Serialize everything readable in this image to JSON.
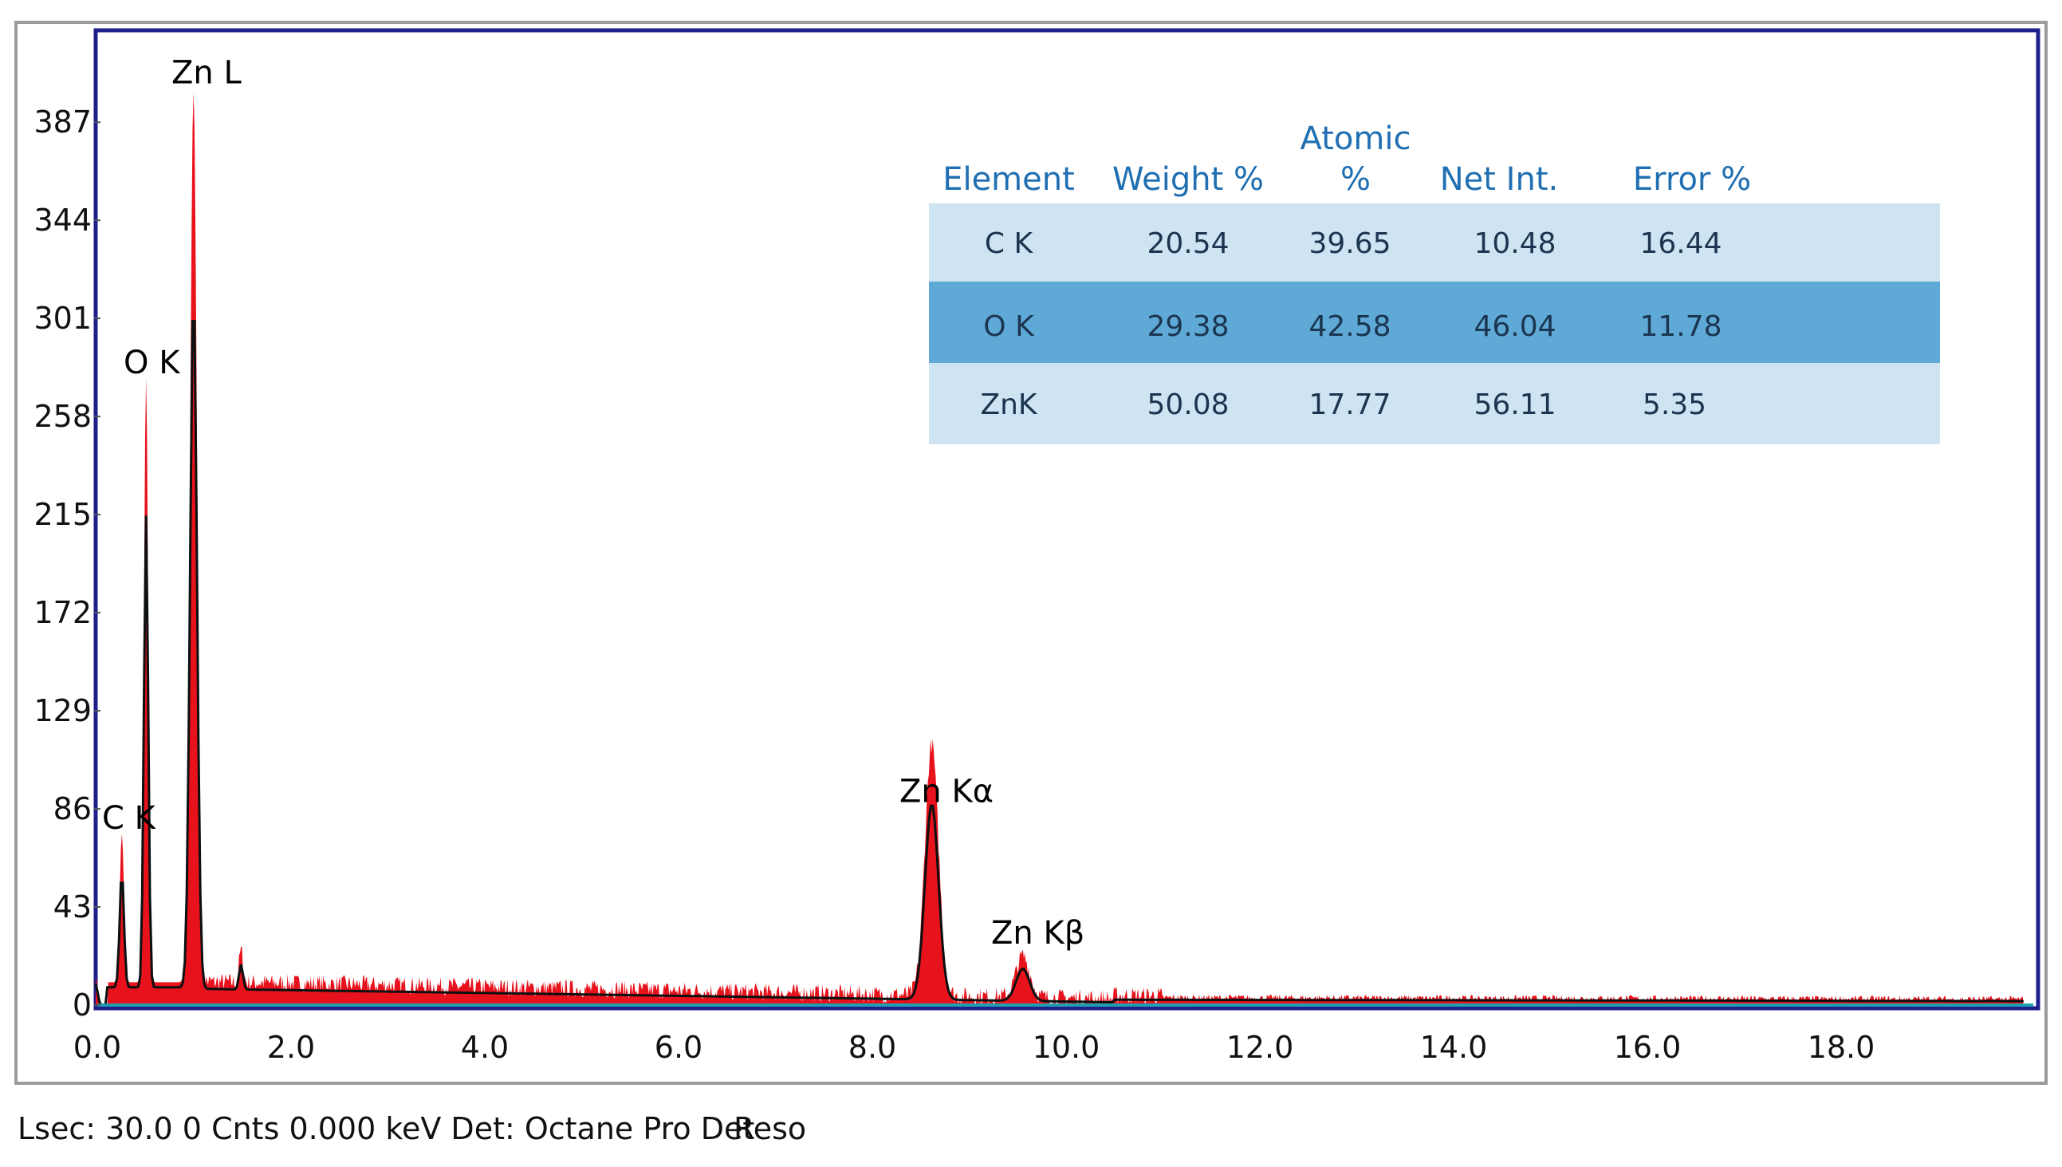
{
  "chart_data": {
    "type": "area",
    "title": "",
    "xlabel": "",
    "ylabel": "",
    "xlim": [
      0,
      20
    ],
    "ylim": [
      0,
      430
    ],
    "x_ticks": [
      "0.0",
      "2.0",
      "4.0",
      "6.0",
      "8.0",
      "10.0",
      "12.0",
      "14.0",
      "16.0",
      "18.0"
    ],
    "y_ticks": [
      "0",
      "43",
      "86",
      "129",
      "172",
      "215",
      "258",
      "301",
      "344",
      "387"
    ],
    "grid": false,
    "colors": {
      "fill": "#e8121c",
      "outline": "#0b1010",
      "baseline": "#1fa0b0",
      "frame": "#1e1e8c"
    },
    "peaks": [
      {
        "label": "C  K",
        "x": 0.27,
        "y": 65
      },
      {
        "label": "O  K",
        "x": 0.52,
        "y": 265
      },
      {
        "label": "Zn L",
        "x": 1.01,
        "y": 390
      },
      {
        "label": "Zn Kα",
        "x": 8.63,
        "y": 110
      },
      {
        "label": "Zn Kβ",
        "x": 9.57,
        "y": 18
      }
    ],
    "table": {
      "headers": {
        "element": "Element",
        "weight": "Weight %",
        "atomic_top": "Atomic",
        "atomic_bottom": "%",
        "net": "Net Int.",
        "error": "Error %"
      },
      "rows": [
        {
          "element": "C K",
          "weight": "20.54",
          "atomic": "39.65",
          "net": "10.48",
          "error": "16.44"
        },
        {
          "element": "O K",
          "weight": "29.38",
          "atomic": "42.58",
          "net": "46.04",
          "error": "11.78"
        },
        {
          "element": "ZnK",
          "weight": "50.08",
          "atomic": "17.77",
          "net": "56.11",
          "error": "5.35"
        }
      ],
      "row_colors": [
        "#cfe4f2",
        "#5fa9d6",
        "#cfe4f2"
      ]
    }
  },
  "status_bar": {
    "left": "Lsec: 30.0 0 Cnts  0.000 keV Det: Octane Pro Det",
    "right": "Reso"
  }
}
